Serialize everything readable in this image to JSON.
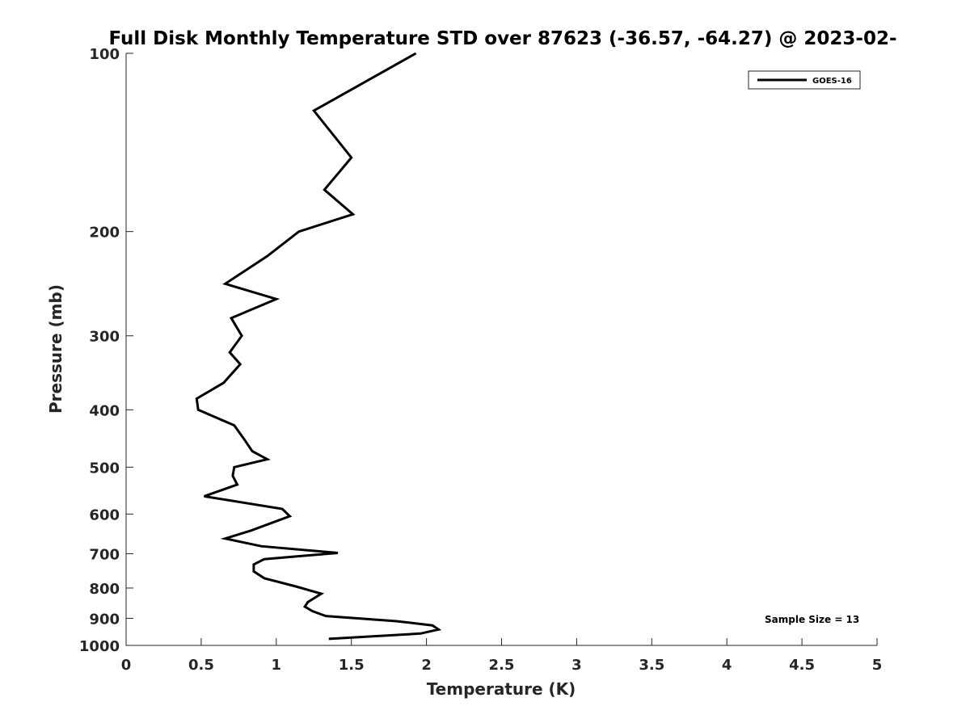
{
  "chart_data": {
    "type": "line",
    "title": "Full Disk Monthly Temperature STD over 87623 (-36.57, -64.27) @ 2023-02-",
    "xlabel": "Temperature (K)",
    "ylabel": "Pressure (mb)",
    "xlim": [
      0,
      5
    ],
    "ylim": [
      100,
      1000
    ],
    "y_scale": "log",
    "y_reversed": true,
    "x_ticks": [
      "0",
      "0.5",
      "1",
      "1.5",
      "2",
      "2.5",
      "3",
      "3.5",
      "4",
      "4.5",
      "5"
    ],
    "y_ticks": [
      "100",
      "200",
      "300",
      "400",
      "500",
      "600",
      "700",
      "800",
      "900",
      "1000"
    ],
    "grid": false,
    "legend_position": "top-right",
    "annotation": "Sample Size = 13",
    "series": [
      {
        "name": "GOES-16",
        "color": "#000000",
        "points": [
          [
            1.93,
            100
          ],
          [
            1.25,
            125
          ],
          [
            1.5,
            150
          ],
          [
            1.32,
            170
          ],
          [
            1.51,
            187
          ],
          [
            1.15,
            200
          ],
          [
            0.94,
            220
          ],
          [
            0.66,
            245
          ],
          [
            1.0,
            260
          ],
          [
            0.7,
            280
          ],
          [
            0.77,
            300
          ],
          [
            0.69,
            320
          ],
          [
            0.76,
            335
          ],
          [
            0.65,
            360
          ],
          [
            0.47,
            383
          ],
          [
            0.48,
            400
          ],
          [
            0.72,
            425
          ],
          [
            0.79,
            450
          ],
          [
            0.84,
            470
          ],
          [
            0.94,
            485
          ],
          [
            0.72,
            500
          ],
          [
            0.71,
            517
          ],
          [
            0.74,
            535
          ],
          [
            0.52,
            560
          ],
          [
            1.04,
            588
          ],
          [
            1.09,
            605
          ],
          [
            0.83,
            640
          ],
          [
            0.66,
            660
          ],
          [
            0.9,
            680
          ],
          [
            1.41,
            698
          ],
          [
            0.92,
            715
          ],
          [
            0.85,
            730
          ],
          [
            0.85,
            750
          ],
          [
            0.92,
            770
          ],
          [
            1.13,
            795
          ],
          [
            1.3,
            818
          ],
          [
            1.21,
            845
          ],
          [
            1.19,
            860
          ],
          [
            1.24,
            875
          ],
          [
            1.33,
            892
          ],
          [
            1.8,
            910
          ],
          [
            2.04,
            925
          ],
          [
            2.08,
            940
          ],
          [
            1.96,
            955
          ],
          [
            1.35,
            975
          ]
        ]
      }
    ]
  }
}
